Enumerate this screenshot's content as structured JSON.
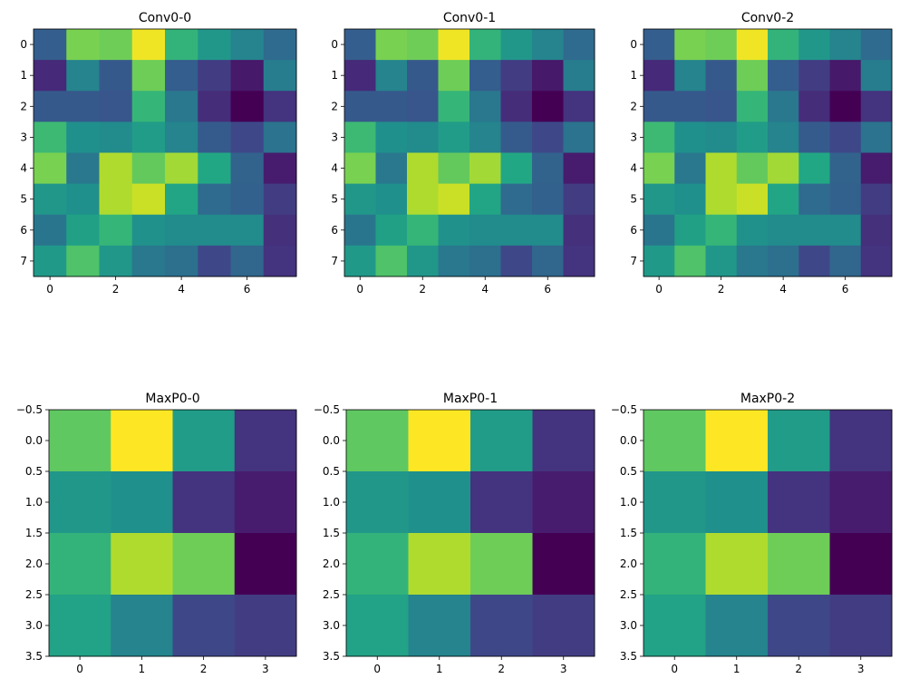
{
  "chart_data": [
    {
      "type": "heatmap",
      "title": "Conv0-0",
      "colormap": "viridis",
      "xticks": [
        0,
        2,
        4,
        6
      ],
      "yticks": [
        0,
        1,
        2,
        3,
        4,
        5,
        6,
        7
      ],
      "xlim": [
        -0.5,
        7.5
      ],
      "ylim": [
        7.5,
        -0.5
      ],
      "values": [
        [
          0.3,
          0.8,
          0.78,
          0.98,
          0.65,
          0.53,
          0.45,
          0.35
        ],
        [
          0.12,
          0.45,
          0.28,
          0.78,
          0.3,
          0.18,
          0.07,
          0.42
        ],
        [
          0.28,
          0.28,
          0.27,
          0.66,
          0.4,
          0.13,
          0.0,
          0.15
        ],
        [
          0.68,
          0.5,
          0.48,
          0.55,
          0.45,
          0.29,
          0.22,
          0.38
        ],
        [
          0.8,
          0.4,
          0.88,
          0.76,
          0.86,
          0.6,
          0.32,
          0.08
        ],
        [
          0.53,
          0.5,
          0.88,
          0.92,
          0.59,
          0.35,
          0.31,
          0.18
        ],
        [
          0.39,
          0.57,
          0.66,
          0.51,
          0.48,
          0.48,
          0.48,
          0.14
        ],
        [
          0.54,
          0.72,
          0.53,
          0.4,
          0.37,
          0.22,
          0.33,
          0.15
        ]
      ]
    },
    {
      "type": "heatmap",
      "title": "Conv0-1",
      "colormap": "viridis",
      "xticks": [
        0,
        2,
        4,
        6
      ],
      "yticks": [
        0,
        1,
        2,
        3,
        4,
        5,
        6,
        7
      ],
      "xlim": [
        -0.5,
        7.5
      ],
      "ylim": [
        7.5,
        -0.5
      ],
      "values": [
        [
          0.3,
          0.8,
          0.78,
          0.98,
          0.65,
          0.53,
          0.45,
          0.35
        ],
        [
          0.12,
          0.45,
          0.28,
          0.78,
          0.3,
          0.18,
          0.07,
          0.42
        ],
        [
          0.28,
          0.28,
          0.27,
          0.66,
          0.4,
          0.13,
          0.0,
          0.15
        ],
        [
          0.68,
          0.5,
          0.48,
          0.55,
          0.45,
          0.29,
          0.22,
          0.38
        ],
        [
          0.8,
          0.4,
          0.88,
          0.76,
          0.86,
          0.6,
          0.32,
          0.08
        ],
        [
          0.53,
          0.5,
          0.88,
          0.92,
          0.59,
          0.35,
          0.31,
          0.18
        ],
        [
          0.39,
          0.57,
          0.66,
          0.51,
          0.48,
          0.48,
          0.48,
          0.14
        ],
        [
          0.54,
          0.72,
          0.53,
          0.4,
          0.37,
          0.22,
          0.33,
          0.15
        ]
      ]
    },
    {
      "type": "heatmap",
      "title": "Conv0-2",
      "colormap": "viridis",
      "xticks": [
        0,
        2,
        4,
        6
      ],
      "yticks": [
        0,
        1,
        2,
        3,
        4,
        5,
        6,
        7
      ],
      "xlim": [
        -0.5,
        7.5
      ],
      "ylim": [
        7.5,
        -0.5
      ],
      "values": [
        [
          0.3,
          0.8,
          0.78,
          0.98,
          0.65,
          0.53,
          0.45,
          0.35
        ],
        [
          0.12,
          0.45,
          0.28,
          0.78,
          0.3,
          0.18,
          0.07,
          0.42
        ],
        [
          0.28,
          0.28,
          0.27,
          0.66,
          0.4,
          0.13,
          0.0,
          0.15
        ],
        [
          0.68,
          0.5,
          0.48,
          0.55,
          0.45,
          0.29,
          0.22,
          0.38
        ],
        [
          0.8,
          0.4,
          0.88,
          0.76,
          0.86,
          0.6,
          0.32,
          0.08
        ],
        [
          0.53,
          0.5,
          0.88,
          0.92,
          0.59,
          0.35,
          0.31,
          0.18
        ],
        [
          0.39,
          0.57,
          0.66,
          0.51,
          0.48,
          0.48,
          0.48,
          0.14
        ],
        [
          0.54,
          0.72,
          0.53,
          0.4,
          0.37,
          0.22,
          0.33,
          0.15
        ]
      ]
    },
    {
      "type": "heatmap",
      "title": "MaxP0-0",
      "colormap": "viridis",
      "xticks": [
        0,
        1,
        2,
        3
      ],
      "yticks": [
        -0.5,
        0.0,
        0.5,
        1.0,
        1.5,
        2.0,
        2.5,
        3.0,
        3.5
      ],
      "ytick_labels": [
        "−0.5",
        "0.0",
        "0.5",
        "1.0",
        "1.5",
        "2.0",
        "2.5",
        "3.0",
        "3.5"
      ],
      "xlim": [
        -0.5,
        3.5
      ],
      "ylim": [
        3.5,
        -0.5
      ],
      "values": [
        [
          0.75,
          1.0,
          0.55,
          0.15
        ],
        [
          0.53,
          0.5,
          0.15,
          0.08
        ],
        [
          0.65,
          0.88,
          0.78,
          0.0
        ],
        [
          0.58,
          0.45,
          0.22,
          0.18
        ]
      ]
    },
    {
      "type": "heatmap",
      "title": "MaxP0-1",
      "colormap": "viridis",
      "xticks": [
        0,
        1,
        2,
        3
      ],
      "yticks": [
        -0.5,
        0.0,
        0.5,
        1.0,
        1.5,
        2.0,
        2.5,
        3.0,
        3.5
      ],
      "ytick_labels": [
        "−0.5",
        "0.0",
        "0.5",
        "1.0",
        "1.5",
        "2.0",
        "2.5",
        "3.0",
        "3.5"
      ],
      "xlim": [
        -0.5,
        3.5
      ],
      "ylim": [
        3.5,
        -0.5
      ],
      "values": [
        [
          0.75,
          1.0,
          0.55,
          0.15
        ],
        [
          0.53,
          0.5,
          0.15,
          0.08
        ],
        [
          0.65,
          0.88,
          0.78,
          0.0
        ],
        [
          0.58,
          0.45,
          0.22,
          0.18
        ]
      ]
    },
    {
      "type": "heatmap",
      "title": "MaxP0-2",
      "colormap": "viridis",
      "xticks": [
        0,
        1,
        2,
        3
      ],
      "yticks": [
        -0.5,
        0.0,
        0.5,
        1.0,
        1.5,
        2.0,
        2.5,
        3.0,
        3.5
      ],
      "ytick_labels": [
        "−0.5",
        "0.0",
        "0.5",
        "1.0",
        "1.5",
        "2.0",
        "2.5",
        "3.0",
        "3.5"
      ],
      "xlim": [
        -0.5,
        3.5
      ],
      "ylim": [
        3.5,
        -0.5
      ],
      "values": [
        [
          0.75,
          1.0,
          0.55,
          0.15
        ],
        [
          0.53,
          0.5,
          0.15,
          0.08
        ],
        [
          0.65,
          0.88,
          0.78,
          0.0
        ],
        [
          0.58,
          0.45,
          0.22,
          0.18
        ]
      ]
    }
  ]
}
